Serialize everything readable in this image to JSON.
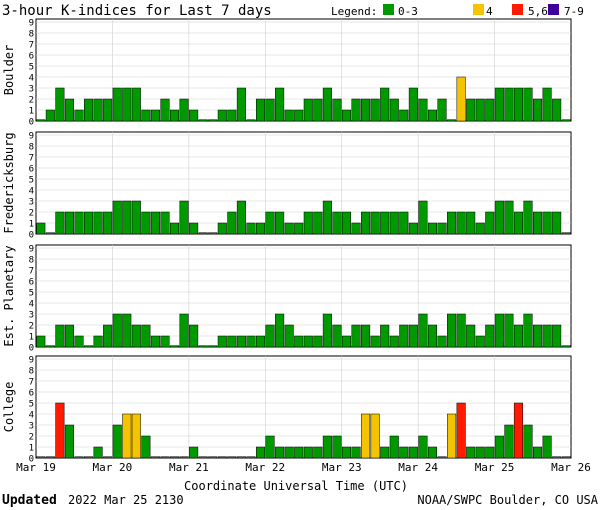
{
  "title": "3-hour K-indices for Last 7 days",
  "legend": {
    "label": "Legend:",
    "items": [
      {
        "label": "0-3",
        "color": "#009900"
      },
      {
        "label": "4",
        "color": "#F5C400"
      },
      {
        "label": "5,6",
        "color": "#FF1A00"
      },
      {
        "label": "7-9",
        "color": "#3D0099"
      }
    ]
  },
  "footer": {
    "updated_label": "Updated",
    "updated_value": "2022 Mar 25 2130",
    "credit": "NOAA/SWPC Boulder, CO USA"
  },
  "chart_data": {
    "type": "bar",
    "xlabel": "Coordinate Universal Time (UTC)",
    "x_tick_labels": [
      "Mar 19",
      "Mar 20",
      "Mar 21",
      "Mar 22",
      "Mar 23",
      "Mar 24",
      "Mar 25",
      "Mar 26"
    ],
    "y_tick_labels": [
      "0",
      "1",
      "2",
      "3",
      "4",
      "5",
      "6",
      "7",
      "8",
      "9"
    ],
    "ylim": [
      0,
      9
    ],
    "bins_per_day": 8,
    "color_scale": {
      "0-3": "#009900",
      "4": "#F5C400",
      "5-6": "#FF1A00",
      "7-9": "#3D0099"
    },
    "panels": [
      {
        "name": "Boulder",
        "values": [
          0,
          1,
          3,
          2,
          1,
          2,
          2,
          2,
          3,
          3,
          3,
          1,
          1,
          2,
          1,
          2,
          1,
          0,
          0,
          1,
          1,
          3,
          0,
          2,
          2,
          3,
          1,
          1,
          2,
          2,
          3,
          2,
          1,
          2,
          2,
          2,
          3,
          2,
          1,
          3,
          2,
          1,
          2,
          0,
          4,
          2,
          2,
          2,
          3,
          3,
          3,
          3,
          2,
          3,
          2,
          0
        ]
      },
      {
        "name": "Fredericksburg",
        "values": [
          1,
          0,
          2,
          2,
          2,
          2,
          2,
          2,
          3,
          3,
          3,
          2,
          2,
          2,
          1,
          3,
          1,
          0,
          0,
          1,
          2,
          3,
          1,
          1,
          2,
          2,
          1,
          1,
          2,
          2,
          3,
          2,
          2,
          1,
          2,
          2,
          2,
          2,
          2,
          1,
          3,
          1,
          1,
          2,
          2,
          2,
          1,
          2,
          3,
          3,
          2,
          3,
          2,
          2,
          2,
          0
        ]
      },
      {
        "name": "Est. Planetary",
        "values": [
          1,
          0,
          2,
          2,
          1,
          0,
          1,
          2,
          3,
          3,
          2,
          2,
          1,
          1,
          0,
          3,
          2,
          0,
          0,
          1,
          1,
          1,
          1,
          1,
          2,
          3,
          2,
          1,
          1,
          1,
          3,
          2,
          1,
          2,
          2,
          1,
          2,
          1,
          2,
          2,
          3,
          2,
          1,
          3,
          3,
          2,
          1,
          2,
          3,
          3,
          2,
          3,
          2,
          2,
          2,
          0
        ]
      },
      {
        "name": "College",
        "values": [
          0,
          0,
          5,
          3,
          0,
          0,
          1,
          0,
          3,
          4,
          4,
          2,
          0,
          0,
          0,
          0,
          1,
          0,
          0,
          0,
          0,
          0,
          0,
          1,
          2,
          1,
          1,
          1,
          1,
          1,
          2,
          2,
          1,
          1,
          4,
          4,
          1,
          2,
          1,
          1,
          2,
          1,
          0,
          4,
          5,
          1,
          1,
          1,
          2,
          3,
          5,
          3,
          1,
          2,
          0,
          0
        ]
      }
    ]
  }
}
